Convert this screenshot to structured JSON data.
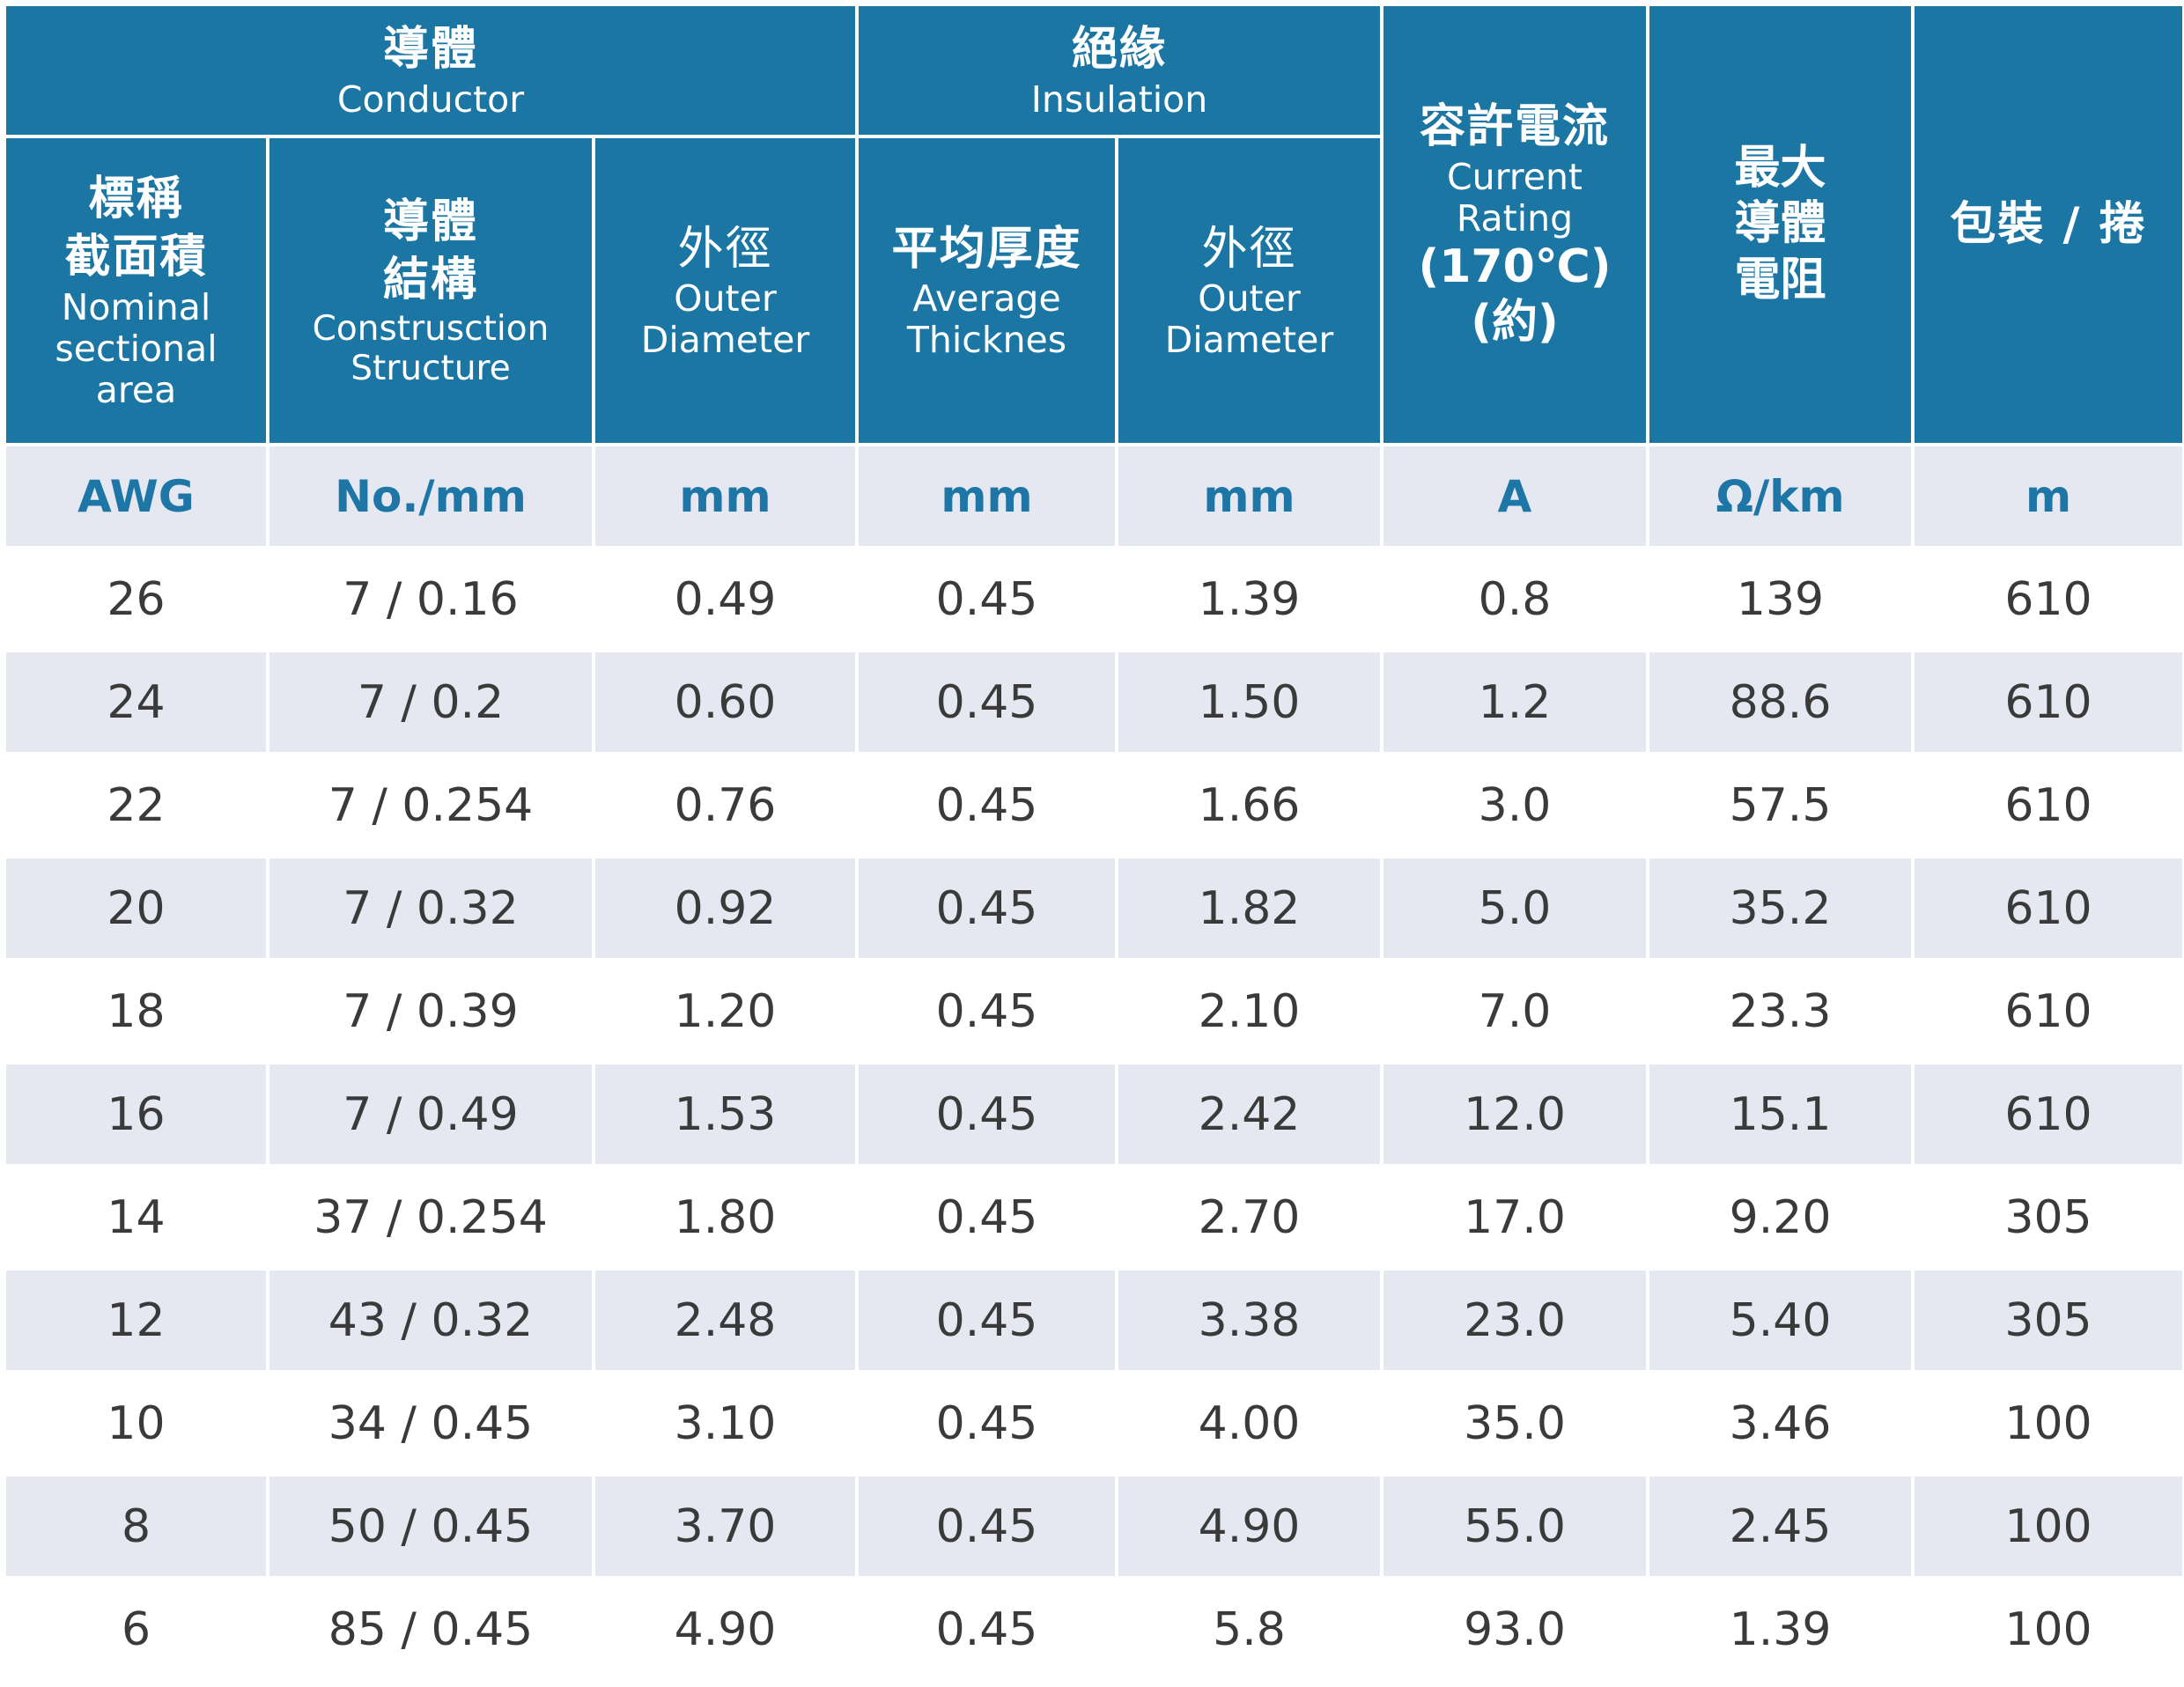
{
  "header": {
    "conductor": {
      "zh": "導體",
      "en": "Conductor"
    },
    "insulation": {
      "zh": "絕緣",
      "en": "Insulation"
    },
    "current_rating": {
      "zh": "容許電流",
      "en1": "Current",
      "en2": "Rating",
      "temp": "(170℃)",
      "approx": "(約)"
    },
    "max_resistance": {
      "line1": "最大",
      "line2": "導體",
      "line3": "電阻"
    },
    "packing": "包裝 / 捲",
    "nominal_area": {
      "zh1": "標稱",
      "zh2": "截面積",
      "en1": "Nominal",
      "en2": "sectional",
      "en3": "area"
    },
    "construction": {
      "zh1": "導體",
      "zh2": "結構",
      "en1": "Construsction",
      "en2": "Structure"
    },
    "conductor_od": {
      "zh": "外徑",
      "en1": "Outer",
      "en2": "Diameter"
    },
    "avg_thickness": {
      "zh": "平均厚度",
      "en1": "Average",
      "en2": "Thicknes"
    },
    "insulation_od": {
      "zh": "外徑",
      "en1": "Outer",
      "en2": "Diameter"
    }
  },
  "units": [
    "AWG",
    "No./mm",
    "mm",
    "mm",
    "mm",
    "A",
    "Ω/km",
    "m"
  ],
  "rows": [
    [
      "26",
      "7 / 0.16",
      "0.49",
      "0.45",
      "1.39",
      "0.8",
      "139",
      "610"
    ],
    [
      "24",
      "7 / 0.2",
      "0.60",
      "0.45",
      "1.50",
      "1.2",
      "88.6",
      "610"
    ],
    [
      "22",
      "7 / 0.254",
      "0.76",
      "0.45",
      "1.66",
      "3.0",
      "57.5",
      "610"
    ],
    [
      "20",
      "7 / 0.32",
      "0.92",
      "0.45",
      "1.82",
      "5.0",
      "35.2",
      "610"
    ],
    [
      "18",
      "7 / 0.39",
      "1.20",
      "0.45",
      "2.10",
      "7.0",
      "23.3",
      "610"
    ],
    [
      "16",
      "7 / 0.49",
      "1.53",
      "0.45",
      "2.42",
      "12.0",
      "15.1",
      "610"
    ],
    [
      "14",
      "37 / 0.254",
      "1.80",
      "0.45",
      "2.70",
      "17.0",
      "9.20",
      "305"
    ],
    [
      "12",
      "43 / 0.32",
      "2.48",
      "0.45",
      "3.38",
      "23.0",
      "5.40",
      "305"
    ],
    [
      "10",
      "34 / 0.45",
      "3.10",
      "0.45",
      "4.00",
      "35.0",
      "3.46",
      "100"
    ],
    [
      "8",
      "50 / 0.45",
      "3.70",
      "0.45",
      "4.90",
      "55.0",
      "2.45",
      "100"
    ],
    [
      "6",
      "85 / 0.45",
      "4.90",
      "0.45",
      "5.8",
      "93.0",
      "1.39",
      "100"
    ]
  ],
  "colors": {
    "header_bg": "#1b76a4",
    "unit_text": "#1d76a6",
    "stripe": "#e5e8f1",
    "body_text": "#3a3a3a"
  }
}
